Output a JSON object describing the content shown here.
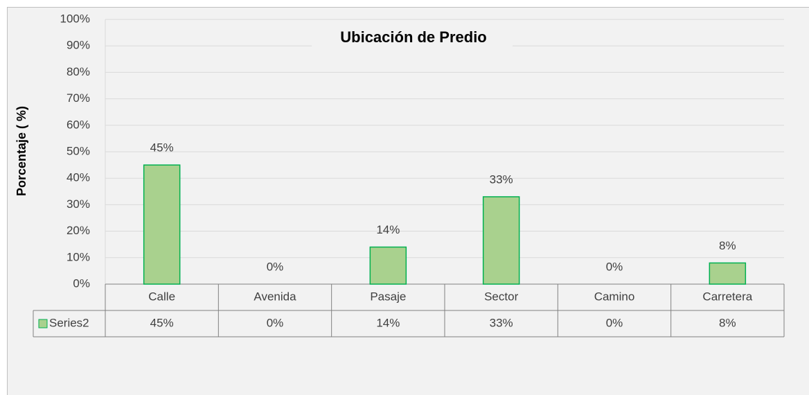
{
  "chart_data": {
    "type": "bar",
    "title": "Ubicación de Predio",
    "y_label": "Porcentaje ( %)",
    "categories": [
      "Calle",
      "Avenida",
      "Pasaje",
      "Sector",
      "Camino",
      "Carretera"
    ],
    "series": [
      {
        "name": "Series2",
        "color": "#a9d18e",
        "values": [
          45,
          0,
          14,
          33,
          0,
          8
        ],
        "value_labels": [
          "45%",
          "0%",
          "14%",
          "33%",
          "0%",
          "8%"
        ]
      }
    ],
    "ylim": [
      0,
      100
    ],
    "yticks": [
      {
        "value": 0,
        "label": "0%"
      },
      {
        "value": 10,
        "label": "10%"
      },
      {
        "value": 20,
        "label": "20%"
      },
      {
        "value": 30,
        "label": "30%"
      },
      {
        "value": 40,
        "label": "40%"
      },
      {
        "value": 50,
        "label": "50%"
      },
      {
        "value": 60,
        "label": "60%"
      },
      {
        "value": 70,
        "label": "70%"
      },
      {
        "value": 80,
        "label": "80%"
      },
      {
        "value": 90,
        "label": "90%"
      },
      {
        "value": 100,
        "label": "100%"
      }
    ],
    "grid": true,
    "data_table": true
  }
}
